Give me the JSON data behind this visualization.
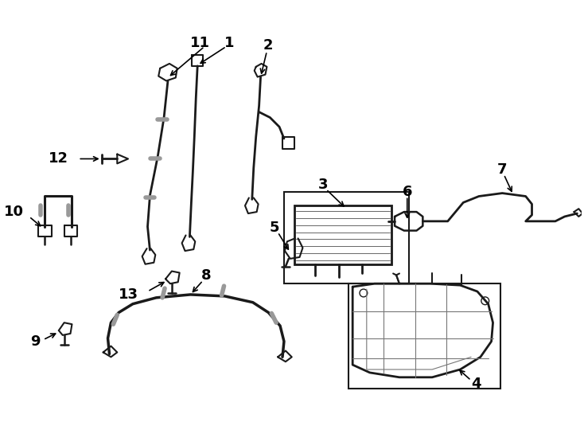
{
  "bg_color": "#ffffff",
  "line_color": "#1a1a1a",
  "fig_width": 7.34,
  "fig_height": 5.4,
  "dpi": 100
}
